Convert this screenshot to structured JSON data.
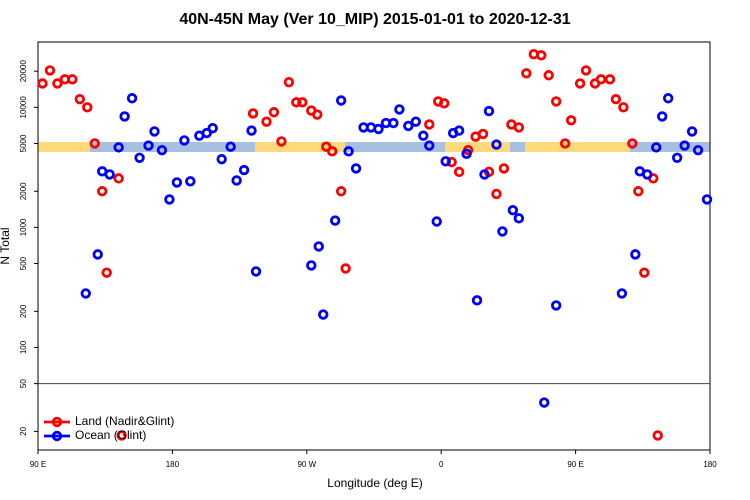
{
  "chart_data": {
    "type": "scatter",
    "title": "40N-45N May (Ver 10_MIP)   2015-01-01 to 2020-12-31",
    "xlabel": "Longitude (deg E)",
    "ylabel": "N Total",
    "xlim": [
      90,
      540
    ],
    "xticks": [
      {
        "value": 90,
        "label": "90 E"
      },
      {
        "value": 180,
        "label": "180"
      },
      {
        "value": 270,
        "label": "90 W"
      },
      {
        "value": 360,
        "label": "0"
      },
      {
        "value": 450,
        "label": "90 E"
      },
      {
        "value": 540,
        "label": "180"
      }
    ],
    "ylim": [
      14,
      35000
    ],
    "yscale": "log",
    "yticks": [
      20,
      50,
      100,
      200,
      500,
      1000,
      2000,
      5000,
      10000,
      20000
    ],
    "hline": 50,
    "legend": "bottom-left",
    "series": [
      {
        "name": "Land (Nadir&Glint)",
        "color": "#ff0000",
        "x": [
          93,
          98,
          103,
          108,
          113,
          118,
          123,
          128,
          133,
          136,
          144,
          146,
          234,
          243,
          248,
          253,
          258,
          263,
          267,
          273,
          277,
          283,
          287,
          293,
          296,
          352,
          358,
          362,
          367,
          372,
          378,
          383,
          388,
          392,
          397,
          402,
          407,
          412,
          417,
          422,
          427,
          432,
          437,
          443,
          447,
          453,
          457,
          463,
          467,
          473,
          477,
          482,
          488,
          492,
          496,
          502,
          505
        ],
        "values": [
          15800,
          20300,
          15800,
          17100,
          17100,
          11700,
          10000,
          5000,
          2000,
          420,
          2560,
          18.5,
          8900,
          7600,
          9100,
          5200,
          16200,
          11000,
          11000,
          9400,
          8700,
          4700,
          4300,
          2000,
          455,
          7200,
          11200,
          10800,
          3500,
          2900,
          4400,
          5700,
          6000,
          2900,
          1900,
          3100,
          7200,
          6800,
          19200,
          27700,
          27100,
          18500,
          11200,
          5000,
          7800,
          15800,
          20300,
          15800,
          17100,
          17100,
          11700,
          10000,
          5000,
          2000,
          420,
          2560,
          18.5
        ]
      },
      {
        "name": "Ocean (Glint)",
        "color": "#0000ff",
        "x": [
          122,
          130,
          133,
          138,
          144,
          148,
          153,
          158,
          164,
          168,
          173,
          178,
          183,
          188,
          192,
          198,
          203,
          207,
          213,
          219,
          223,
          228,
          233,
          236,
          273,
          278,
          281,
          289,
          293,
          298,
          303,
          308,
          313,
          318,
          323,
          328,
          332,
          338,
          343,
          348,
          352,
          357,
          363,
          368,
          372,
          377,
          384,
          389,
          392,
          397,
          401,
          408,
          412,
          429,
          437,
          481,
          490,
          493,
          498,
          504,
          508,
          512,
          518,
          523,
          528,
          532,
          538
        ],
        "values": [
          282,
          596,
          2930,
          2760,
          4640,
          8400,
          11900,
          3800,
          4800,
          6300,
          4400,
          1710,
          2370,
          5300,
          2420,
          5800,
          6100,
          6700,
          3700,
          4700,
          2460,
          3000,
          6400,
          430,
          482,
          694,
          188,
          1140,
          11400,
          4300,
          3100,
          6800,
          6800,
          6600,
          7400,
          7400,
          9600,
          7000,
          7600,
          5800,
          4800,
          1120,
          3550,
          6100,
          6400,
          4100,
          247,
          2760,
          9300,
          4900,
          926,
          1390,
          1190,
          34.8,
          224,
          282,
          596,
          2930,
          2760,
          4640,
          8400,
          11900,
          3800,
          4800,
          6300,
          4400,
          1710
        ]
      }
    ]
  }
}
